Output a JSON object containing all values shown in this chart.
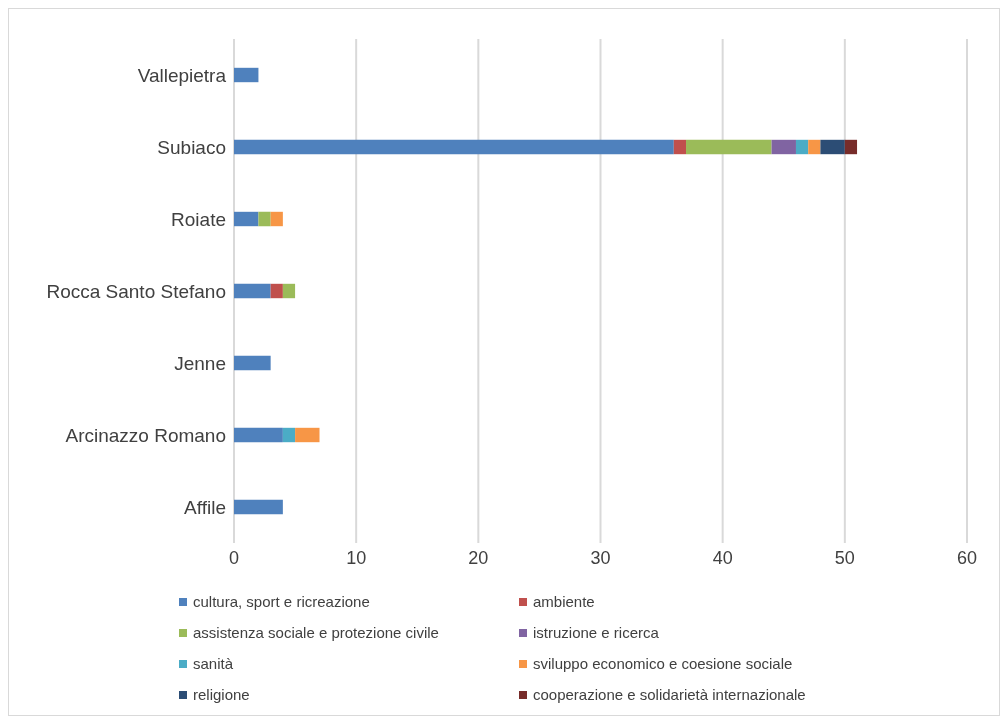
{
  "chart_data": {
    "type": "bar",
    "orientation": "horizontal",
    "stacked": true,
    "categories": [
      "Vallepietra",
      "Subiaco",
      "Roiate",
      "Rocca Santo Stefano",
      "Jenne",
      "Arcinazzo Romano",
      "Affile"
    ],
    "series": [
      {
        "name": "cultura, sport e ricreazione",
        "color": "#4f81bd",
        "values": [
          2,
          36,
          2,
          3,
          3,
          4,
          4
        ]
      },
      {
        "name": "ambiente",
        "color": "#c0504d",
        "values": [
          null,
          1,
          null,
          1,
          null,
          null,
          null
        ]
      },
      {
        "name": "assistenza sociale e protezione civile",
        "color": "#9bbb59",
        "values": [
          null,
          7,
          1,
          1,
          null,
          null,
          null
        ]
      },
      {
        "name": "istruzione e ricerca",
        "color": "#8064a2",
        "values": [
          null,
          2,
          null,
          null,
          null,
          null,
          null
        ]
      },
      {
        "name": "sanità",
        "color": "#4bacc6",
        "values": [
          null,
          1,
          null,
          null,
          null,
          1,
          null
        ]
      },
      {
        "name": "sviluppo economico e coesione sociale",
        "color": "#f79646",
        "values": [
          null,
          1,
          1,
          null,
          null,
          2,
          null
        ]
      },
      {
        "name": "religione",
        "color": "#2c4d75",
        "values": [
          null,
          2,
          null,
          null,
          null,
          null,
          null
        ]
      },
      {
        "name": "cooperazione e solidarietà internazionale",
        "color": "#772c2a",
        "values": [
          null,
          1,
          null,
          null,
          null,
          null,
          null
        ]
      }
    ],
    "xlim": [
      0,
      60
    ],
    "xticks": [
      0,
      10,
      20,
      30,
      40,
      50,
      60
    ],
    "grid": "x",
    "legend": "bottom"
  }
}
